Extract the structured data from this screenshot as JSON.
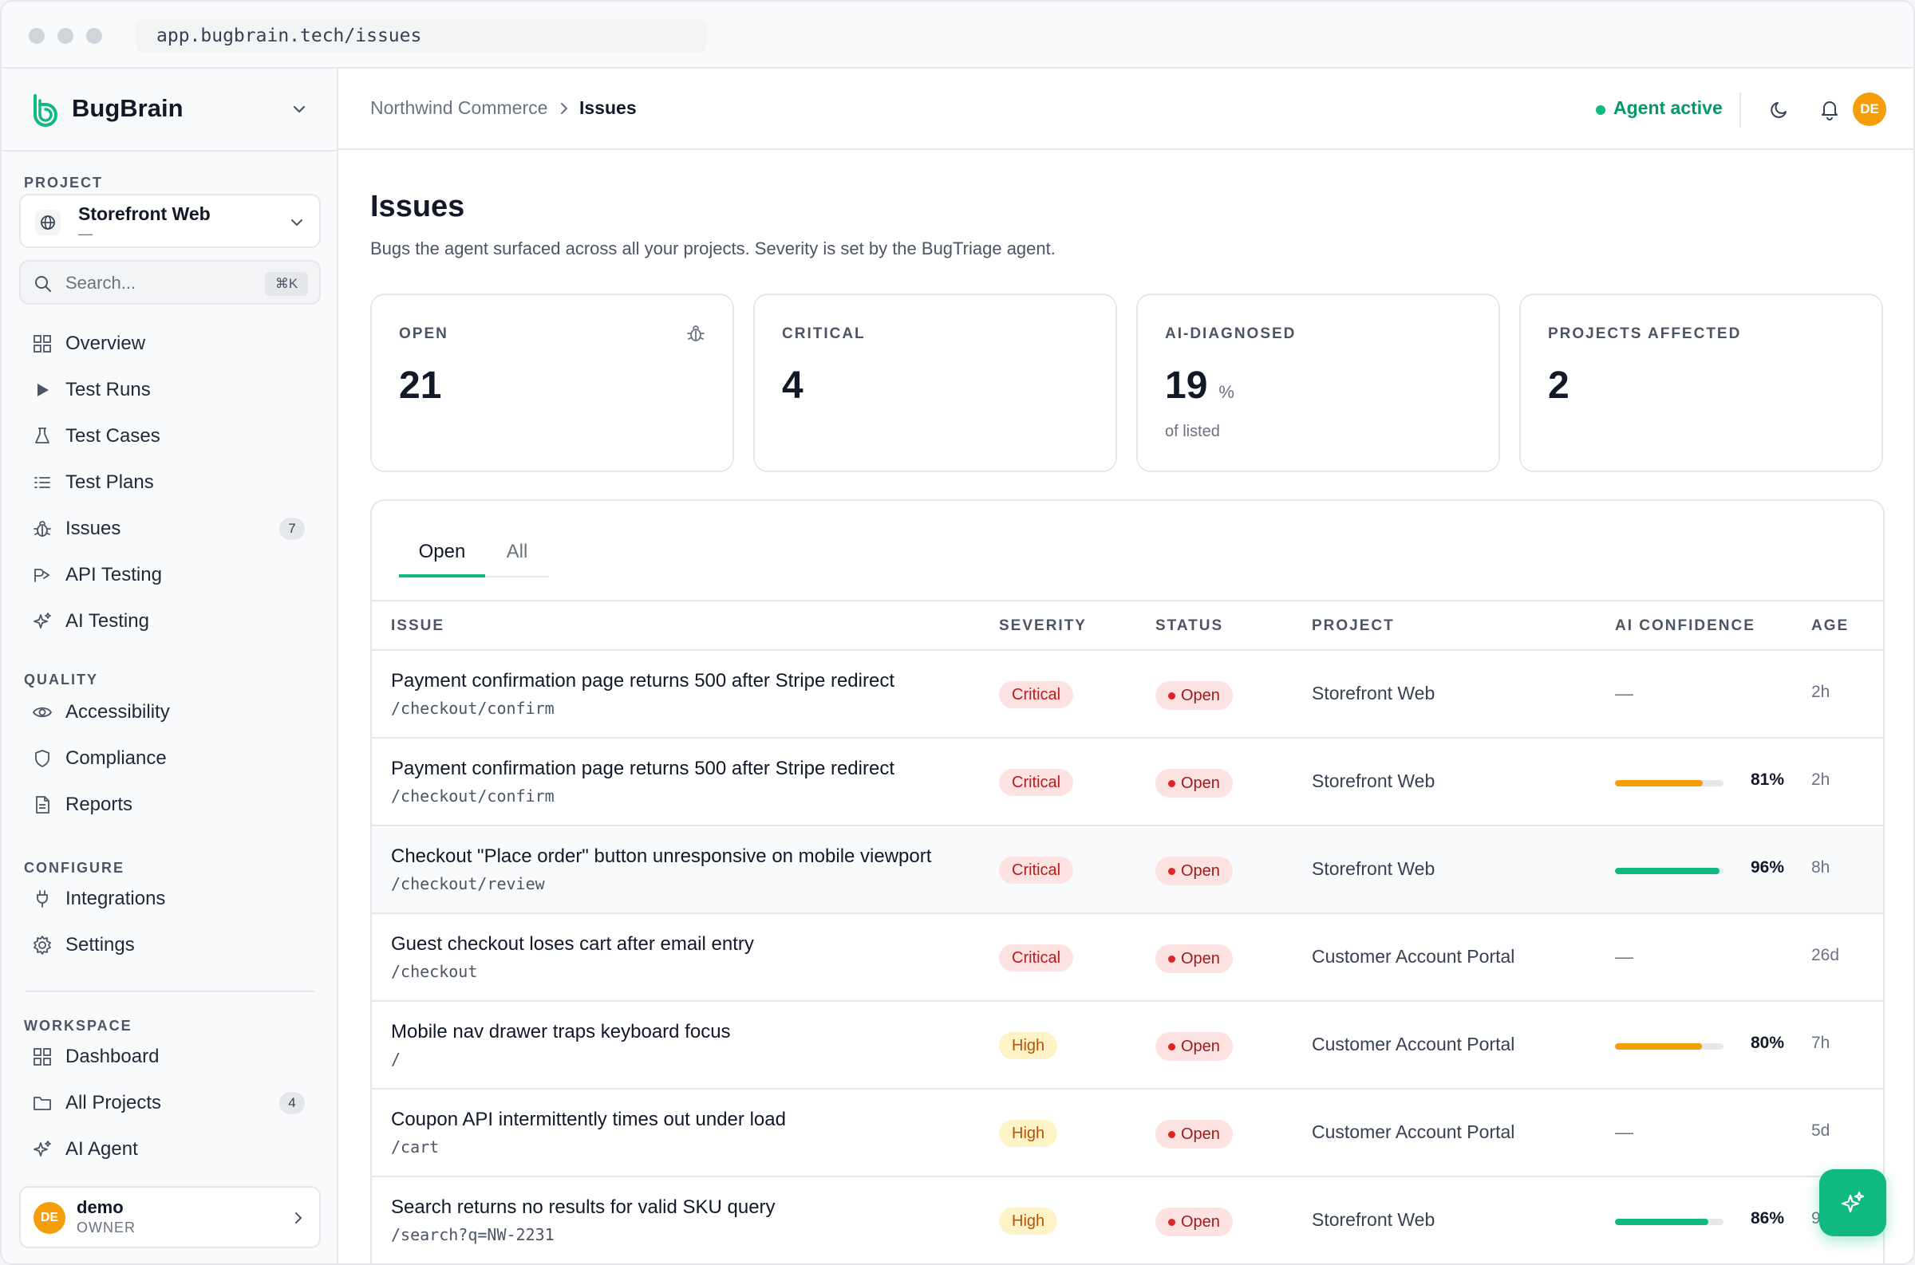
{
  "browser": {
    "url": "app.bugbrain.tech/issues"
  },
  "brand": {
    "name": "BugBrain"
  },
  "sidebar": {
    "project_label": "PROJECT",
    "project": {
      "name": "Storefront Web",
      "sub": "—"
    },
    "search": {
      "placeholder": "Search...",
      "shortcut": "⌘K"
    },
    "main_items": [
      {
        "label": "Overview",
        "icon": "grid-icon"
      },
      {
        "label": "Test Runs",
        "icon": "play-icon"
      },
      {
        "label": "Test Cases",
        "icon": "flask-icon"
      },
      {
        "label": "Test Plans",
        "icon": "list-icon"
      },
      {
        "label": "Issues",
        "icon": "bug-icon",
        "count": "7"
      },
      {
        "label": "API Testing",
        "icon": "api-icon"
      },
      {
        "label": "AI Testing",
        "icon": "sparkle-icon"
      }
    ],
    "quality_label": "QUALITY",
    "quality_items": [
      {
        "label": "Accessibility",
        "icon": "eye-icon"
      },
      {
        "label": "Compliance",
        "icon": "shield-icon"
      },
      {
        "label": "Reports",
        "icon": "document-icon"
      }
    ],
    "configure_label": "CONFIGURE",
    "configure_items": [
      {
        "label": "Integrations",
        "icon": "plug-icon"
      },
      {
        "label": "Settings",
        "icon": "gear-icon"
      }
    ],
    "workspace_label": "WORKSPACE",
    "workspace_items": [
      {
        "label": "Dashboard",
        "icon": "grid-icon"
      },
      {
        "label": "All Projects",
        "icon": "folder-icon",
        "count": "4"
      },
      {
        "label": "AI Agent",
        "icon": "sparkle-icon"
      }
    ],
    "user": {
      "initials": "DE",
      "name": "demo",
      "role": "OWNER"
    }
  },
  "header": {
    "breadcrumb": [
      "Northwind Commerce",
      "Issues"
    ],
    "agent_status": "Agent active",
    "avatar_initials": "DE"
  },
  "page": {
    "title": "Issues",
    "subtitle": "Bugs the agent surfaced across all your projects. Severity is set by the BugTriage agent."
  },
  "stats": [
    {
      "label": "OPEN",
      "value": "21",
      "unit": "",
      "note": ""
    },
    {
      "label": "CRITICAL",
      "value": "4",
      "unit": "",
      "note": ""
    },
    {
      "label": "AI-DIAGNOSED",
      "value": "19",
      "unit": "%",
      "note": "of listed"
    },
    {
      "label": "PROJECTS AFFECTED",
      "value": "2",
      "unit": "",
      "note": ""
    }
  ],
  "tabs": [
    {
      "label": "Open"
    },
    {
      "label": "All"
    }
  ],
  "table": {
    "columns": [
      "ISSUE",
      "SEVERITY",
      "STATUS",
      "PROJECT",
      "AI CONFIDENCE",
      "AGE"
    ],
    "rows": [
      {
        "title": "Payment confirmation page returns 500 after Stripe redirect",
        "path": "/checkout/confirm",
        "severity": "Critical",
        "status": "Open",
        "project": "Storefront Web",
        "confidence": null,
        "confidence_label": "—",
        "age": "2h"
      },
      {
        "title": "Payment confirmation page returns 500 after Stripe redirect",
        "path": "/checkout/confirm",
        "severity": "Critical",
        "status": "Open",
        "project": "Storefront Web",
        "confidence": 81,
        "confidence_label": "81%",
        "age": "2h"
      },
      {
        "title": "Checkout \"Place order\" button unresponsive on mobile viewport",
        "path": "/checkout/review",
        "severity": "Critical",
        "status": "Open",
        "project": "Storefront Web",
        "confidence": 96,
        "confidence_label": "96%",
        "age": "8h"
      },
      {
        "title": "Guest checkout loses cart after email entry",
        "path": "/checkout",
        "severity": "Critical",
        "status": "Open",
        "project": "Customer Account Portal",
        "confidence": null,
        "confidence_label": "—",
        "age": "26d"
      },
      {
        "title": "Mobile nav drawer traps keyboard focus",
        "path": "/",
        "severity": "High",
        "status": "Open",
        "project": "Customer Account Portal",
        "confidence": 80,
        "confidence_label": "80%",
        "age": "7h"
      },
      {
        "title": "Coupon API intermittently times out under load",
        "path": "/cart",
        "severity": "High",
        "status": "Open",
        "project": "Customer Account Portal",
        "confidence": null,
        "confidence_label": "—",
        "age": "5d"
      },
      {
        "title": "Search returns no results for valid SKU query",
        "path": "/search?q=NW-2231",
        "severity": "High",
        "status": "Open",
        "project": "Storefront Web",
        "confidence": 86,
        "confidence_label": "86%",
        "age": "9h"
      }
    ]
  },
  "colors": {
    "accent": "#10b981",
    "warn_bar": "#f59e0b",
    "critical_bg": "#fde2e2",
    "high_bg": "#fef3c7"
  }
}
